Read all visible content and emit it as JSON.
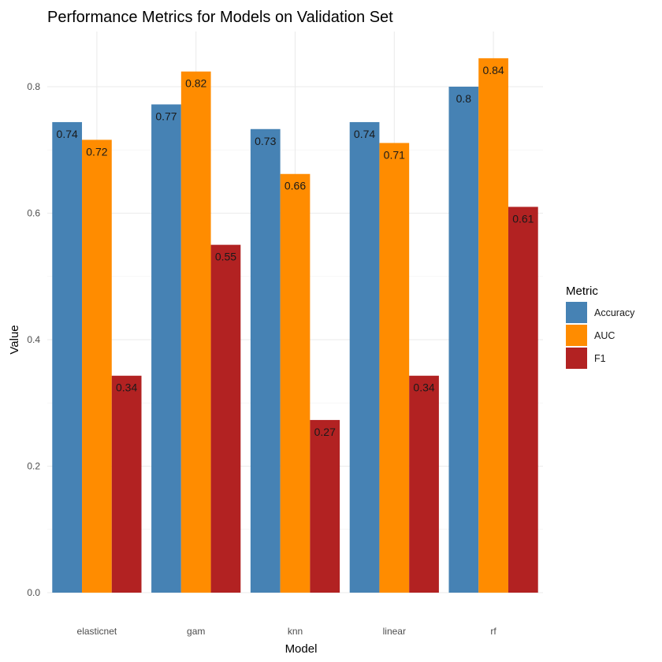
{
  "chart_data": {
    "type": "bar",
    "title": "Performance Metrics for Models on Validation Set",
    "xlabel": "Model",
    "ylabel": "Value",
    "categories": [
      "elasticnet",
      "gam",
      "knn",
      "linear",
      "rf"
    ],
    "ylim": [
      0,
      0.88
    ],
    "yticks": [
      0.0,
      0.2,
      0.4,
      0.6,
      0.8
    ],
    "ytick_labels": [
      "0.0",
      "0.2",
      "0.4",
      "0.6",
      "0.8"
    ],
    "grid": true,
    "legend": {
      "title": "Metric",
      "position": "right"
    },
    "series": [
      {
        "name": "Accuracy",
        "color": "#4682B4",
        "values": [
          0.744,
          0.772,
          0.733,
          0.744,
          0.8
        ],
        "labels": [
          "0.74",
          "0.77",
          "0.73",
          "0.74",
          "0.8"
        ]
      },
      {
        "name": "AUC",
        "color": "#FF8C00",
        "values": [
          0.716,
          0.824,
          0.662,
          0.711,
          0.845
        ],
        "labels": [
          "0.72",
          "0.82",
          "0.66",
          "0.71",
          "0.84"
        ]
      },
      {
        "name": "F1",
        "color": "#B22222",
        "values": [
          0.343,
          0.55,
          0.273,
          0.343,
          0.61
        ],
        "labels": [
          "0.34",
          "0.55",
          "0.27",
          "0.34",
          "0.61"
        ]
      }
    ]
  }
}
